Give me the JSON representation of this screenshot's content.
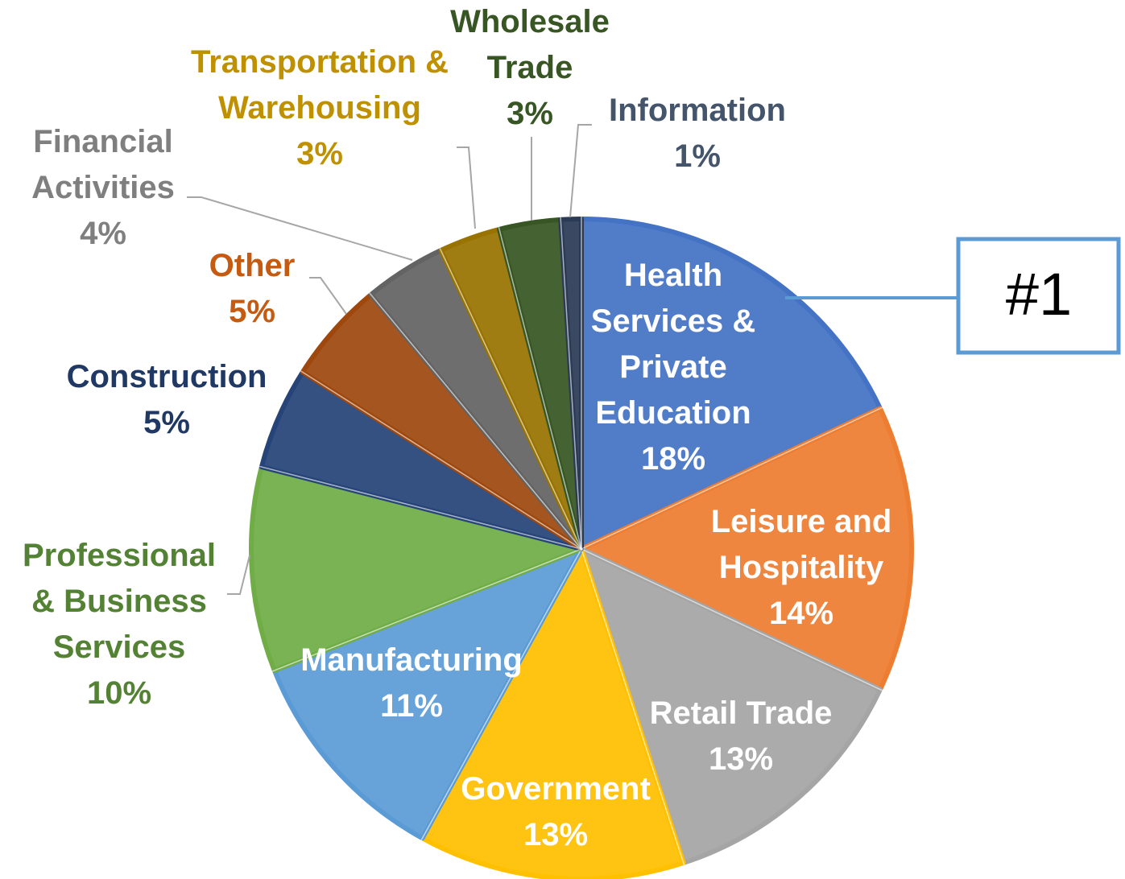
{
  "chart_data": {
    "type": "pie",
    "categories": [
      "Health Services & Private Education",
      "Leisure and Hospitality",
      "Retail Trade",
      "Government",
      "Manufacturing",
      "Professional & Business Services",
      "Construction",
      "Other",
      "Financial Activities",
      "Transportation & Warehousing",
      "Wholesale Trade",
      "Information"
    ],
    "values": [
      18,
      14,
      13,
      13,
      11,
      10,
      5,
      5,
      4,
      3,
      3,
      1
    ],
    "value_labels": [
      "18%",
      "14%",
      "13%",
      "13%",
      "11%",
      "10%",
      "5%",
      "5%",
      "4%",
      "3%",
      "3%",
      "1%"
    ],
    "colors": [
      "#4472c4",
      "#ed7d31",
      "#a5a5a5",
      "#ffc000",
      "#5b9bd5",
      "#70ad47",
      "#264478",
      "#9e480e",
      "#636363",
      "#997300",
      "#375623",
      "#2b3a55"
    ],
    "label_colors": [
      "#ffffff",
      "#ffffff",
      "#ffffff",
      "#ffffff",
      "#ffffff",
      "#548235",
      "#203864",
      "#c55a11",
      "#7f7f7f",
      "#bf9000",
      "#375623",
      "#44546a"
    ],
    "annotation": "#1"
  }
}
